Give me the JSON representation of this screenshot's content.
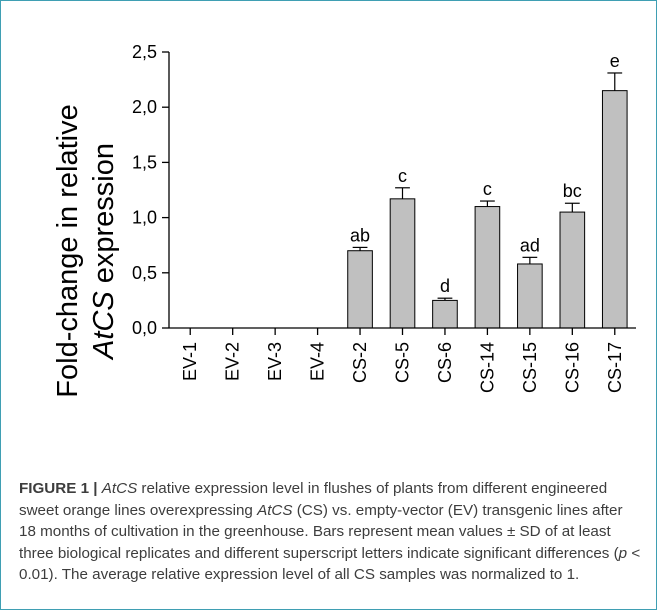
{
  "chart_data": {
    "type": "bar",
    "ylabel_line1": "Fold-change in relative",
    "ylabel_gene": "AtCS",
    "ylabel_rest": " expression",
    "ylim": [
      0,
      2.5
    ],
    "yticks": [
      "0,0",
      "0,5",
      "1,0",
      "1,5",
      "2,0",
      "2,5"
    ],
    "ytick_values": [
      0,
      0.5,
      1.0,
      1.5,
      2.0,
      2.5
    ],
    "grid": false,
    "categories": [
      "EV-1",
      "EV-2",
      "EV-3",
      "EV-4",
      "CS-2",
      "CS-5",
      "CS-6",
      "CS-14",
      "CS-15",
      "CS-16",
      "CS-17"
    ],
    "values": [
      0,
      0,
      0,
      0,
      0.7,
      1.17,
      0.25,
      1.1,
      0.58,
      1.05,
      2.15
    ],
    "errors": [
      0,
      0,
      0,
      0,
      0.03,
      0.1,
      0.02,
      0.05,
      0.06,
      0.08,
      0.16
    ],
    "letters": [
      "",
      "",
      "",
      "",
      "ab",
      "c",
      "d",
      "c",
      "ad",
      "bc",
      "e"
    ],
    "bar_color": "#c0c0c0"
  },
  "caption": {
    "label": "FIGURE 1 |",
    "gene1": "AtCS",
    "part1": " relative expression level in flushes of plants from different engineered sweet orange lines overexpressing ",
    "gene2": "AtCS",
    "part2": " (CS) vs. empty-vector (EV) transgenic lines after 18 months of cultivation in the greenhouse. Bars represent mean values ± SD of at least three biological replicates and different superscript letters indicate significant differences (",
    "p_symbol": "p",
    "part3": " < 0.01). The average relative expression level of all CS samples was normalized to 1."
  }
}
